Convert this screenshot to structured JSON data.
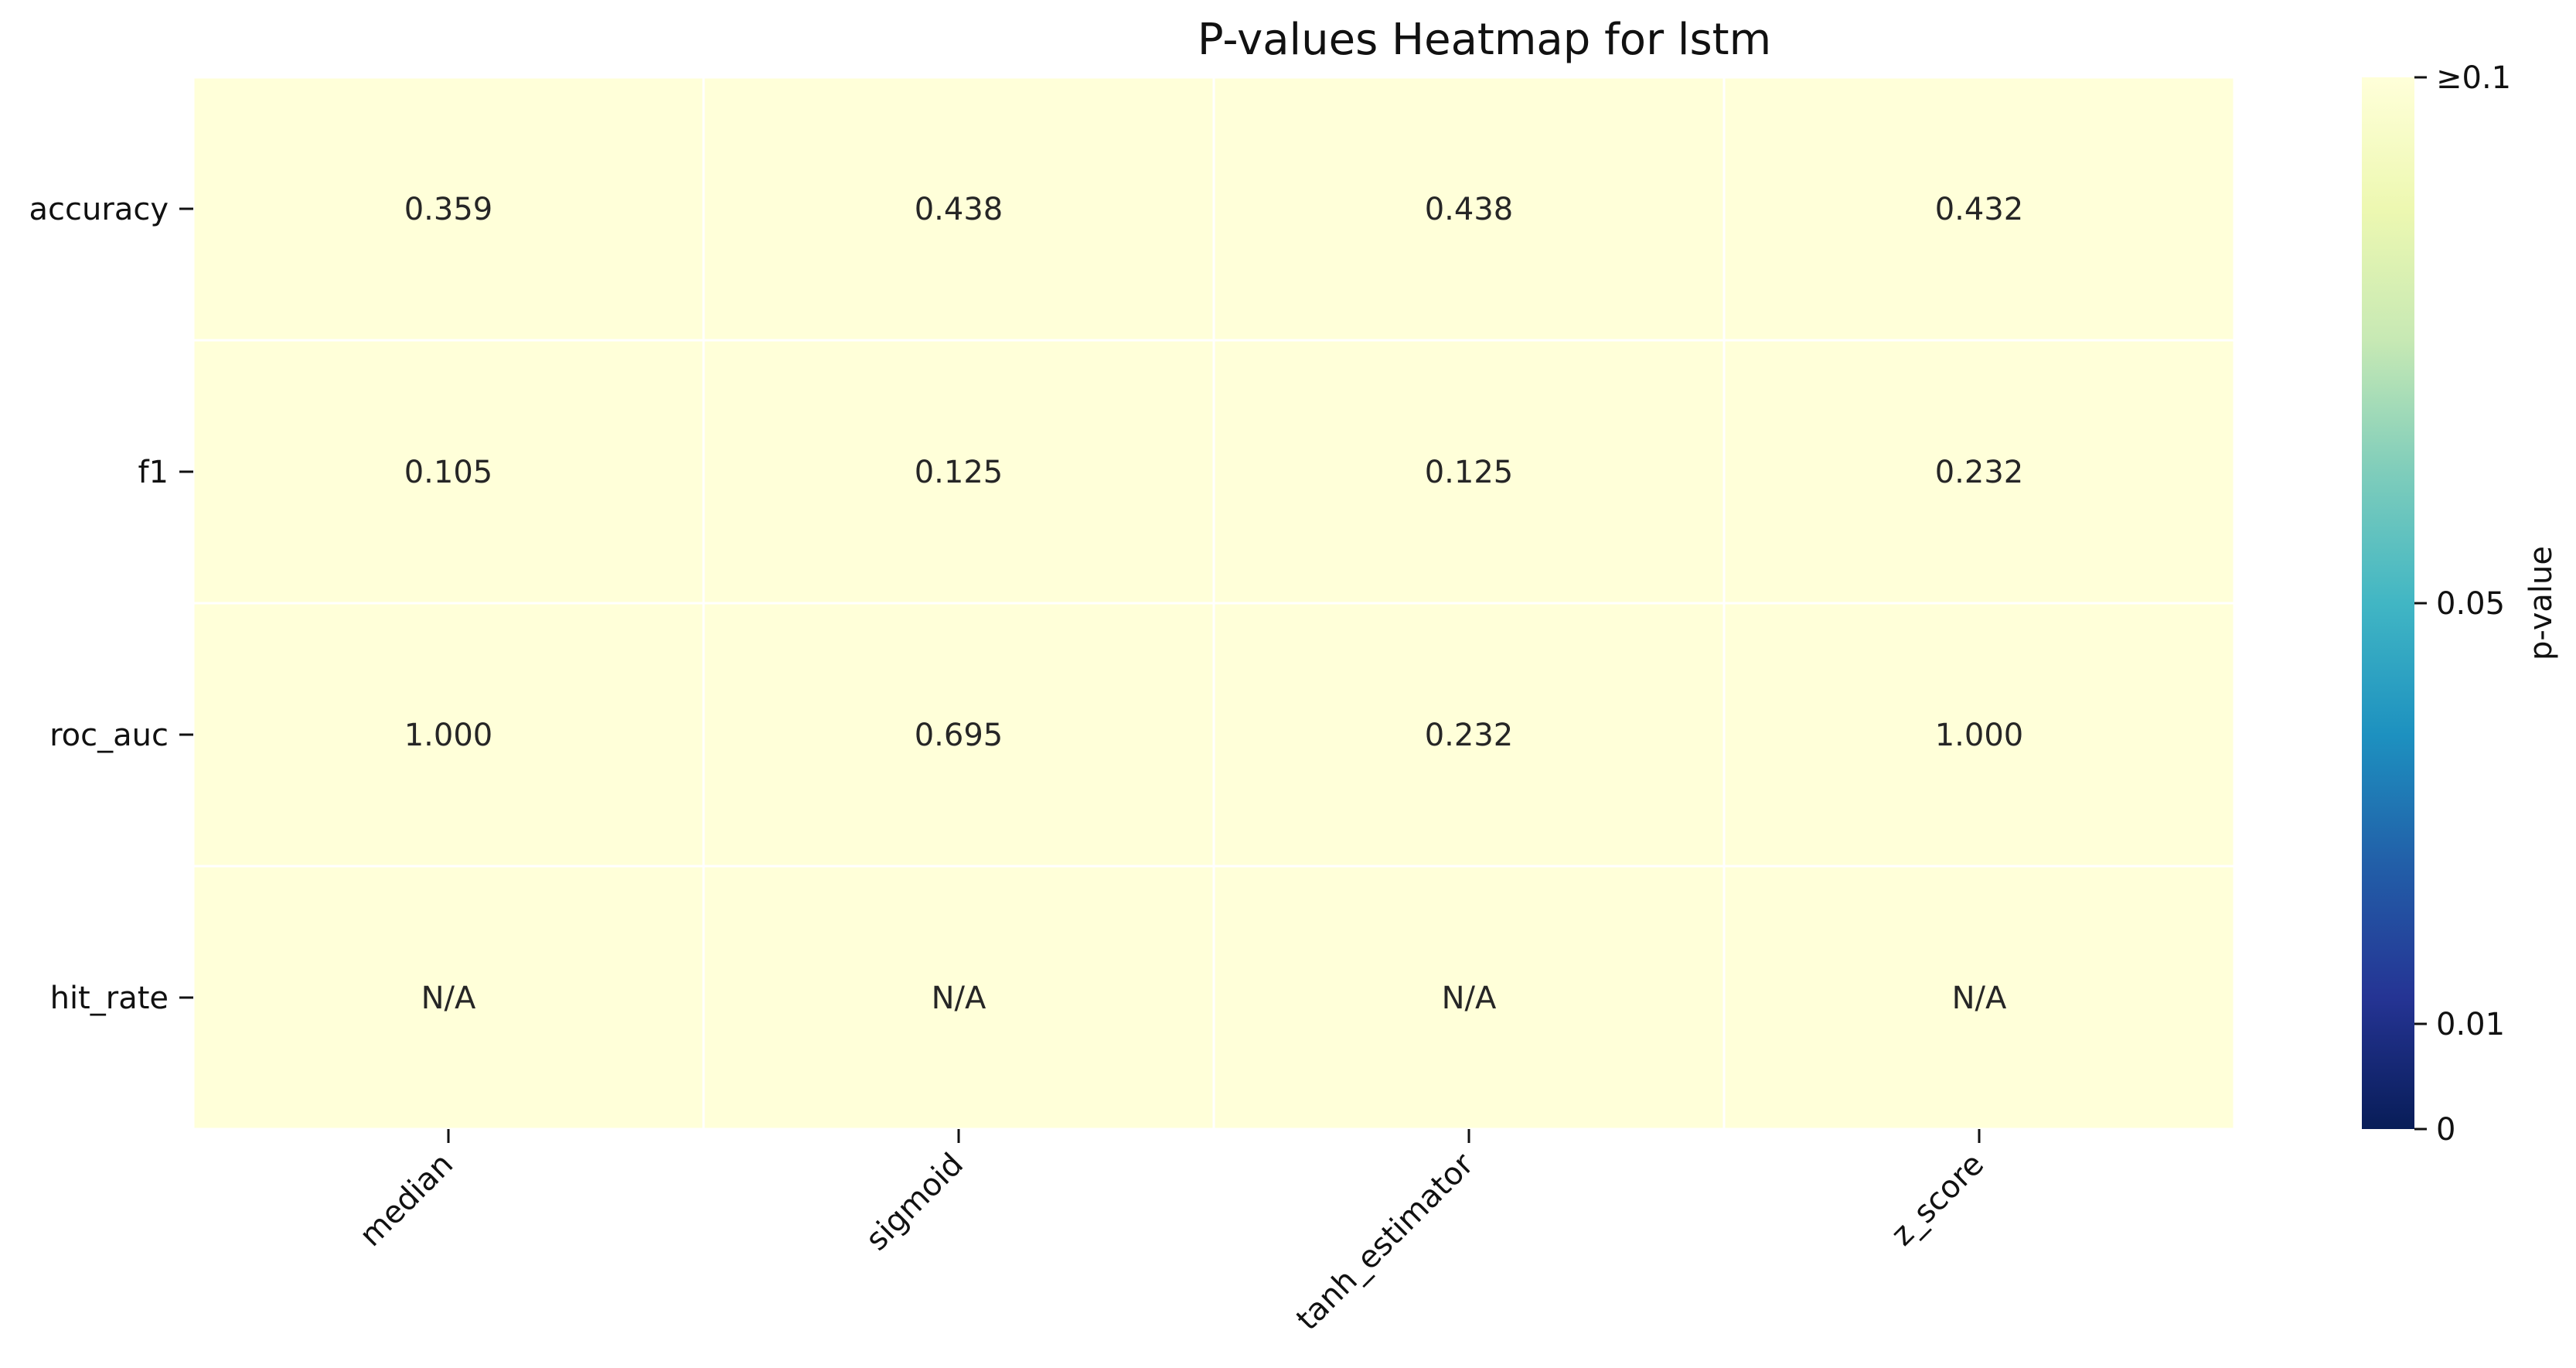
{
  "chart_data": {
    "type": "heatmap",
    "title": "P-values Heatmap for lstm",
    "xlabel": "",
    "ylabel": "",
    "x_categories": [
      "median",
      "sigmoid",
      "tanh_estimator",
      "z_score"
    ],
    "y_categories": [
      "accuracy",
      "f1",
      "roc_auc",
      "hit_rate"
    ],
    "values": [
      [
        "0.359",
        "0.438",
        "0.438",
        "0.432"
      ],
      [
        "0.105",
        "0.125",
        "0.125",
        "0.232"
      ],
      [
        "1.000",
        "0.695",
        "0.232",
        "1.000"
      ],
      [
        "N/A",
        "N/A",
        "N/A",
        "N/A"
      ]
    ],
    "colorbar": {
      "label": "p-value",
      "ticks": [
        {
          "value": 0,
          "label": "0"
        },
        {
          "value": 0.01,
          "label": "0.01"
        },
        {
          "value": 0.05,
          "label": "0.05"
        },
        {
          "value": 0.1,
          "label": "≥0.1"
        }
      ],
      "range": [
        0,
        0.1
      ],
      "colormap": "YlGnBu_r",
      "stops": [
        "#081d58",
        "#253494",
        "#225ea8",
        "#1d91c0",
        "#41b6c4",
        "#7fcdbb",
        "#c7e9b4",
        "#edf8b1",
        "#ffffd9"
      ]
    },
    "cell_color_high": "#ffffd9",
    "na_color": "#ffffd9",
    "grid_line_color": "#ffffff"
  }
}
